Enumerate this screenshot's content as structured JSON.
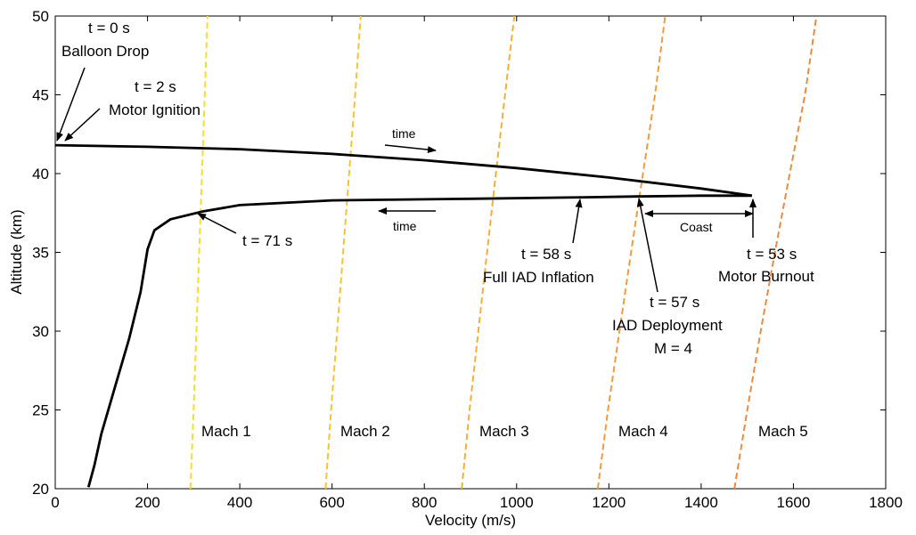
{
  "chart_data": {
    "type": "line",
    "xlabel": "Velocity (m/s)",
    "ylabel": "Altitude (km)",
    "xlim": [
      0,
      1800
    ],
    "ylim": [
      20,
      50
    ],
    "x_ticks": [
      0,
      200,
      400,
      600,
      800,
      1000,
      1200,
      1400,
      1600,
      1800
    ],
    "y_ticks": [
      20,
      25,
      30,
      35,
      40,
      45,
      50
    ],
    "grid": false,
    "series": [
      {
        "color": "#000000",
        "style": "solid",
        "points": [
          [
            0,
            41.8
          ],
          [
            100,
            41.75
          ],
          [
            200,
            41.7
          ],
          [
            400,
            41.55
          ],
          [
            600,
            41.25
          ],
          [
            800,
            40.85
          ],
          [
            1000,
            40.35
          ],
          [
            1200,
            39.75
          ],
          [
            1400,
            39.05
          ],
          [
            1510,
            38.6
          ]
        ]
      },
      {
        "color": "#000000",
        "style": "solid",
        "points": [
          [
            1510,
            38.6
          ],
          [
            1400,
            38.6
          ],
          [
            1260,
            38.55
          ],
          [
            1150,
            38.5
          ],
          [
            900,
            38.4
          ],
          [
            600,
            38.3
          ],
          [
            400,
            38.0
          ],
          [
            320,
            37.6
          ],
          [
            250,
            37.1
          ],
          [
            215,
            36.4
          ],
          [
            200,
            35.2
          ],
          [
            185,
            32.5
          ],
          [
            160,
            29.5
          ],
          [
            130,
            26.5
          ],
          [
            100,
            23.5
          ],
          [
            85,
            21.5
          ],
          [
            72,
            20.1
          ]
        ]
      }
    ],
    "mach_lines": [
      {
        "label": "Mach 1",
        "color": "#f7dd30",
        "points": [
          [
            293,
            20
          ],
          [
            300,
            25
          ],
          [
            306,
            30
          ],
          [
            312,
            35
          ],
          [
            318,
            40
          ],
          [
            324,
            45
          ],
          [
            330,
            50
          ]
        ]
      },
      {
        "label": "Mach 2",
        "color": "#f5c431",
        "points": [
          [
            586,
            20
          ],
          [
            598,
            25
          ],
          [
            611,
            30
          ],
          [
            624,
            35
          ],
          [
            637,
            40
          ],
          [
            650,
            45
          ],
          [
            662,
            50
          ]
        ]
      },
      {
        "label": "Mach 3",
        "color": "#f2b035",
        "points": [
          [
            881,
            20
          ],
          [
            898,
            25
          ],
          [
            917,
            30
          ],
          [
            936,
            35
          ],
          [
            955,
            40
          ],
          [
            975,
            45
          ],
          [
            995,
            50
          ]
        ]
      },
      {
        "label": "Mach 4",
        "color": "#f09c3a",
        "points": [
          [
            1176,
            20
          ],
          [
            1198,
            25
          ],
          [
            1223,
            30
          ],
          [
            1248,
            35
          ],
          [
            1274,
            40
          ],
          [
            1300,
            45
          ],
          [
            1322,
            50
          ]
        ]
      },
      {
        "label": "Mach 5",
        "color": "#ed8a3e",
        "points": [
          [
            1472,
            20
          ],
          [
            1500,
            25
          ],
          [
            1529,
            30
          ],
          [
            1560,
            35
          ],
          [
            1592,
            40
          ],
          [
            1625,
            45
          ],
          [
            1650,
            50
          ]
        ]
      }
    ],
    "annotations": {
      "t0_line1": "t = 0 s",
      "t0_line2": "Balloon Drop",
      "t2_line1": "t = 2 s",
      "t2_line2": "Motor Ignition",
      "time_upper": "time",
      "time_lower": "time",
      "t71": "t = 71 s",
      "t58_line1": "t = 58 s",
      "t58_line2": "Full IAD Inflation",
      "t57_line1": "t = 57 s",
      "t57_line2": "IAD Deployment",
      "t57_line3": "M = 4",
      "coast": "Coast",
      "t53_line1": "t = 53 s",
      "t53_line2": "Motor Burnout"
    }
  }
}
